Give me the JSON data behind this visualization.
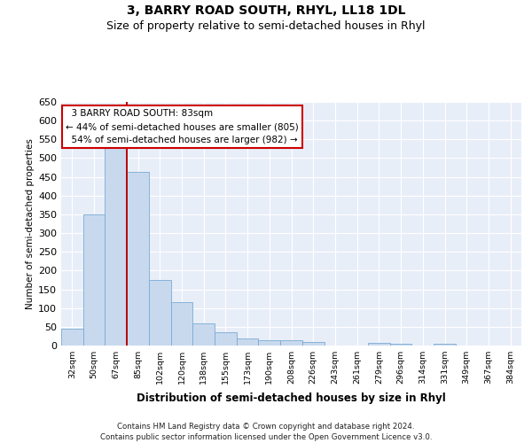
{
  "title": "3, BARRY ROAD SOUTH, RHYL, LL18 1DL",
  "subtitle": "Size of property relative to semi-detached houses in Rhyl",
  "xlabel": "Distribution of semi-detached houses by size in Rhyl",
  "ylabel": "Number of semi-detached properties",
  "bar_labels": [
    "32sqm",
    "50sqm",
    "67sqm",
    "85sqm",
    "102sqm",
    "120sqm",
    "138sqm",
    "155sqm",
    "173sqm",
    "190sqm",
    "208sqm",
    "226sqm",
    "243sqm",
    "261sqm",
    "279sqm",
    "296sqm",
    "314sqm",
    "331sqm",
    "349sqm",
    "367sqm",
    "384sqm"
  ],
  "bar_values": [
    46,
    349,
    536,
    464,
    175,
    117,
    59,
    35,
    20,
    15,
    15,
    10,
    0,
    0,
    8,
    5,
    0,
    5,
    0,
    0,
    0
  ],
  "bar_color": "#c8d9ee",
  "bar_edge_color": "#7aaad3",
  "property_sqm": 83,
  "pct_smaller": 44,
  "n_smaller": 805,
  "pct_larger": 54,
  "n_larger": 982,
  "annotation_box_color": "#cc0000",
  "ylim": [
    0,
    650
  ],
  "yticks": [
    0,
    50,
    100,
    150,
    200,
    250,
    300,
    350,
    400,
    450,
    500,
    550,
    600,
    650
  ],
  "footer_line1": "Contains HM Land Registry data © Crown copyright and database right 2024.",
  "footer_line2": "Contains public sector information licensed under the Open Government Licence v3.0.",
  "title_fontsize": 10,
  "subtitle_fontsize": 9,
  "background_color": "#e8eef8"
}
